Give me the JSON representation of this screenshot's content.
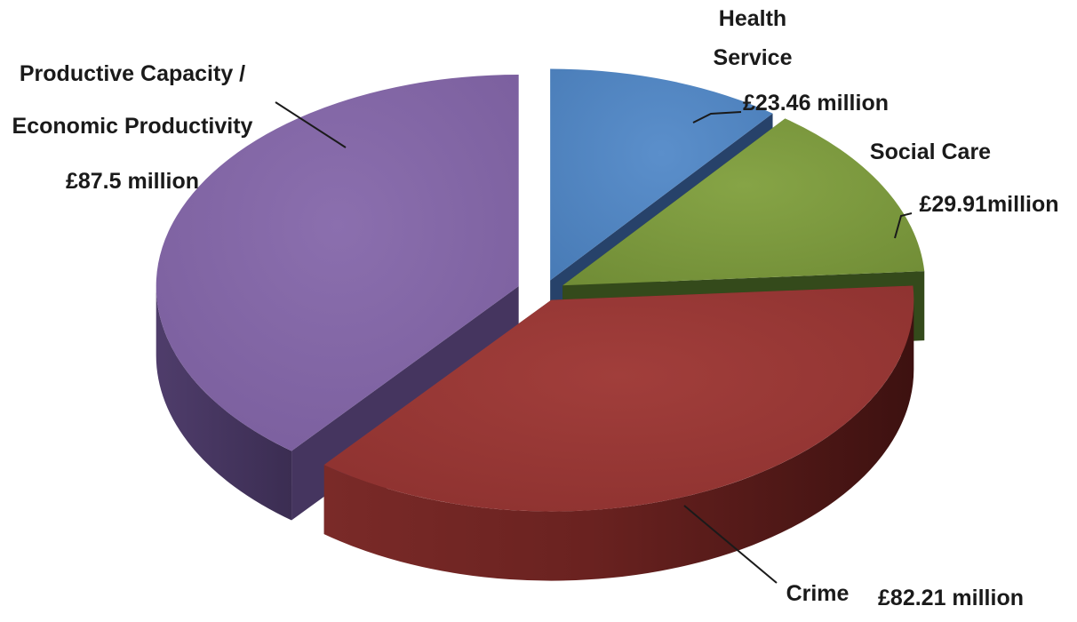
{
  "chart_data": {
    "type": "pie",
    "three_d": true,
    "exploded": true,
    "title": "",
    "legend": "none",
    "labels_outside_with_leader_lines": true,
    "slices": [
      {
        "label_lines": [
          "Health",
          "Service"
        ],
        "value_label": "£23.46 million",
        "value": 23.46,
        "unit": "£ million",
        "color": "#4f81bd",
        "side_color": "#2f4f7a"
      },
      {
        "label_lines": [
          "Social Care"
        ],
        "value_label": "£29.91million",
        "value": 29.91,
        "unit": "£ million",
        "color": "#77933c",
        "side_color": "#3f5220"
      },
      {
        "label_lines": [
          "Crime"
        ],
        "value_label": "£82.21 million",
        "value": 82.21,
        "unit": "£ million",
        "color": "#953735",
        "side_color": "#5e1d1c"
      },
      {
        "label_lines": [
          "Productive Capacity /",
          "Economic Productivity"
        ],
        "value_label": "£87.5 million",
        "value": 87.5,
        "unit": "£ million",
        "color": "#8064a2",
        "side_color": "#4a3964"
      }
    ]
  }
}
